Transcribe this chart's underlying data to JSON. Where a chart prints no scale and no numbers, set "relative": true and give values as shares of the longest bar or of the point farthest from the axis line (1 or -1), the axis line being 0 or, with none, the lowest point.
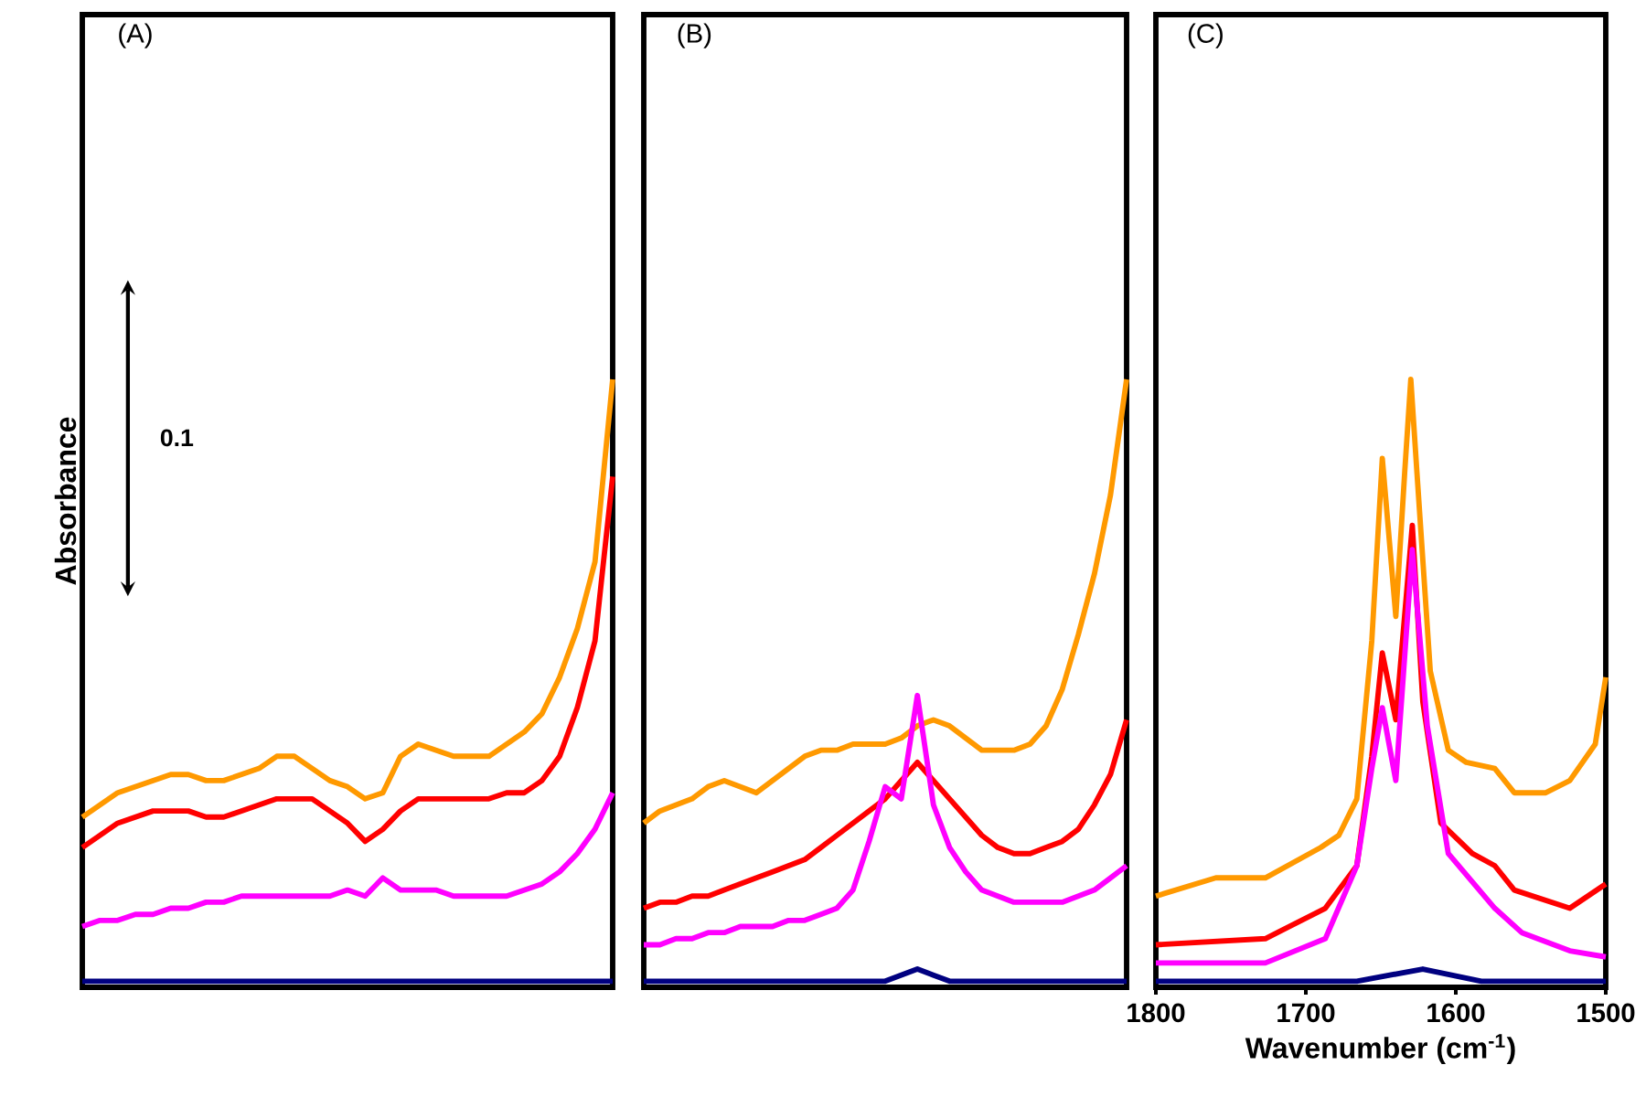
{
  "chart_data": [
    {
      "type": "line",
      "title": "(A)",
      "ylabel": "Absorbance",
      "relative": true,
      "tick_labels": false,
      "annotations": [
        "0.1"
      ],
      "categories": [
        null,
        null,
        null,
        null,
        null,
        null,
        null,
        null,
        null,
        null,
        null,
        null,
        null,
        null,
        null,
        null,
        null,
        null,
        null,
        null,
        null,
        null,
        null,
        null,
        null,
        null,
        null,
        null,
        null,
        null,
        null
      ],
      "series": [
        {
          "color": "#ff9900",
          "values": [
            0.28,
            0.3,
            0.32,
            0.33,
            0.34,
            0.35,
            0.35,
            0.34,
            0.34,
            0.35,
            0.36,
            0.38,
            0.38,
            0.36,
            0.34,
            0.33,
            0.31,
            0.32,
            0.38,
            0.4,
            0.39,
            0.38,
            0.38,
            0.38,
            0.4,
            0.42,
            0.45,
            0.51,
            0.59,
            0.7,
            1.0
          ]
        },
        {
          "color": "#ff0000",
          "values": [
            0.23,
            0.25,
            0.27,
            0.28,
            0.29,
            0.29,
            0.29,
            0.28,
            0.28,
            0.29,
            0.3,
            0.31,
            0.31,
            0.31,
            0.29,
            0.27,
            0.24,
            0.26,
            0.29,
            0.31,
            0.31,
            0.31,
            0.31,
            0.31,
            0.32,
            0.32,
            0.34,
            0.38,
            0.46,
            0.57,
            0.84
          ]
        },
        {
          "color": "#ff00ff",
          "values": [
            0.1,
            0.11,
            0.11,
            0.12,
            0.12,
            0.13,
            0.13,
            0.14,
            0.14,
            0.15,
            0.15,
            0.15,
            0.15,
            0.15,
            0.15,
            0.16,
            0.15,
            0.18,
            0.16,
            0.16,
            0.16,
            0.15,
            0.15,
            0.15,
            0.15,
            0.16,
            0.17,
            0.19,
            0.22,
            0.26,
            0.32
          ]
        },
        {
          "color": "#000080",
          "values": [
            0.01,
            0.01,
            0.01,
            0.01,
            0.01,
            0.01,
            0.01,
            0.01,
            0.01,
            0.01,
            0.01,
            0.01,
            0.01,
            0.01,
            0.01,
            0.01,
            0.01,
            0.01,
            0.01,
            0.01,
            0.01,
            0.01,
            0.01,
            0.01,
            0.01,
            0.01,
            0.01,
            0.01,
            0.01,
            0.01,
            0.01
          ]
        }
      ]
    },
    {
      "type": "line",
      "title": "(B)",
      "relative": true,
      "tick_labels": false,
      "categories": [
        null,
        null,
        null,
        null,
        null,
        null,
        null,
        null,
        null,
        null,
        null,
        null,
        null,
        null,
        null,
        null,
        null,
        null,
        null,
        null,
        null,
        null,
        null,
        null,
        null,
        null,
        null,
        null,
        null,
        null,
        null
      ],
      "series": [
        {
          "color": "#ff9900",
          "values": [
            0.27,
            0.29,
            0.3,
            0.31,
            0.33,
            0.34,
            0.33,
            0.32,
            0.34,
            0.36,
            0.38,
            0.39,
            0.39,
            0.4,
            0.4,
            0.4,
            0.41,
            0.43,
            0.44,
            0.43,
            0.41,
            0.39,
            0.39,
            0.39,
            0.4,
            0.43,
            0.49,
            0.58,
            0.68,
            0.81,
            1.0
          ]
        },
        {
          "color": "#ff0000",
          "values": [
            0.13,
            0.14,
            0.14,
            0.15,
            0.15,
            0.16,
            0.17,
            0.18,
            0.19,
            0.2,
            0.21,
            0.23,
            0.25,
            0.27,
            0.29,
            0.31,
            0.34,
            0.37,
            0.34,
            0.31,
            0.28,
            0.25,
            0.23,
            0.22,
            0.22,
            0.23,
            0.24,
            0.26,
            0.3,
            0.35,
            0.44
          ]
        },
        {
          "color": "#ff00ff",
          "values": [
            0.07,
            0.07,
            0.08,
            0.08,
            0.09,
            0.09,
            0.1,
            0.1,
            0.1,
            0.11,
            0.11,
            0.12,
            0.13,
            0.16,
            0.24,
            0.33,
            0.31,
            0.48,
            0.3,
            0.23,
            0.19,
            0.16,
            0.15,
            0.14,
            0.14,
            0.14,
            0.14,
            0.15,
            0.16,
            0.18,
            0.2
          ]
        },
        {
          "color": "#000080",
          "values": [
            0.01,
            0.01,
            0.01,
            0.01,
            0.01,
            0.01,
            0.01,
            0.01,
            0.01,
            0.01,
            0.01,
            0.01,
            0.01,
            0.01,
            0.01,
            0.01,
            0.02,
            0.03,
            0.02,
            0.01,
            0.01,
            0.01,
            0.01,
            0.01,
            0.01,
            0.01,
            0.01,
            0.01,
            0.01,
            0.01,
            0.01
          ]
        }
      ]
    },
    {
      "type": "line",
      "title": "(C)",
      "xlabel": "Wavenumber (cm$^{-1}$)",
      "relative": true,
      "xlim": [
        1800,
        1500
      ],
      "xticks": [
        1800,
        1700,
        1600,
        1500
      ],
      "tick_labels": "x",
      "series": [
        {
          "color": "#ff9900",
          "x": [
            1800,
            1760,
            1727,
            1690,
            1678,
            1666,
            1656,
            1649,
            1640,
            1634,
            1630,
            1626,
            1617,
            1605,
            1593,
            1574,
            1561,
            1540,
            1524,
            1507,
            1500
          ],
          "values": [
            0.15,
            0.18,
            0.18,
            0.23,
            0.25,
            0.31,
            0.57,
            0.87,
            0.61,
            0.85,
            1.0,
            0.85,
            0.52,
            0.39,
            0.37,
            0.36,
            0.32,
            0.32,
            0.34,
            0.4,
            0.51
          ]
        },
        {
          "color": "#ff0000",
          "x": [
            1800,
            1727,
            1687,
            1666,
            1656,
            1649,
            1640,
            1629,
            1622,
            1610,
            1589,
            1574,
            1561,
            1524,
            1500
          ],
          "values": [
            0.07,
            0.08,
            0.13,
            0.2,
            0.38,
            0.55,
            0.44,
            0.76,
            0.47,
            0.27,
            0.22,
            0.2,
            0.16,
            0.13,
            0.17
          ]
        },
        {
          "color": "#ff00ff",
          "x": [
            1800,
            1727,
            1687,
            1666,
            1656,
            1649,
            1640,
            1629,
            1619,
            1605,
            1574,
            1556,
            1524,
            1500
          ],
          "values": [
            0.04,
            0.04,
            0.08,
            0.2,
            0.36,
            0.46,
            0.34,
            0.72,
            0.43,
            0.22,
            0.13,
            0.09,
            0.06,
            0.05
          ]
        },
        {
          "color": "#000080",
          "x": [
            1800,
            1666,
            1622,
            1583,
            1500
          ],
          "values": [
            0.01,
            0.01,
            0.03,
            0.01,
            0.01
          ]
        }
      ]
    }
  ]
}
